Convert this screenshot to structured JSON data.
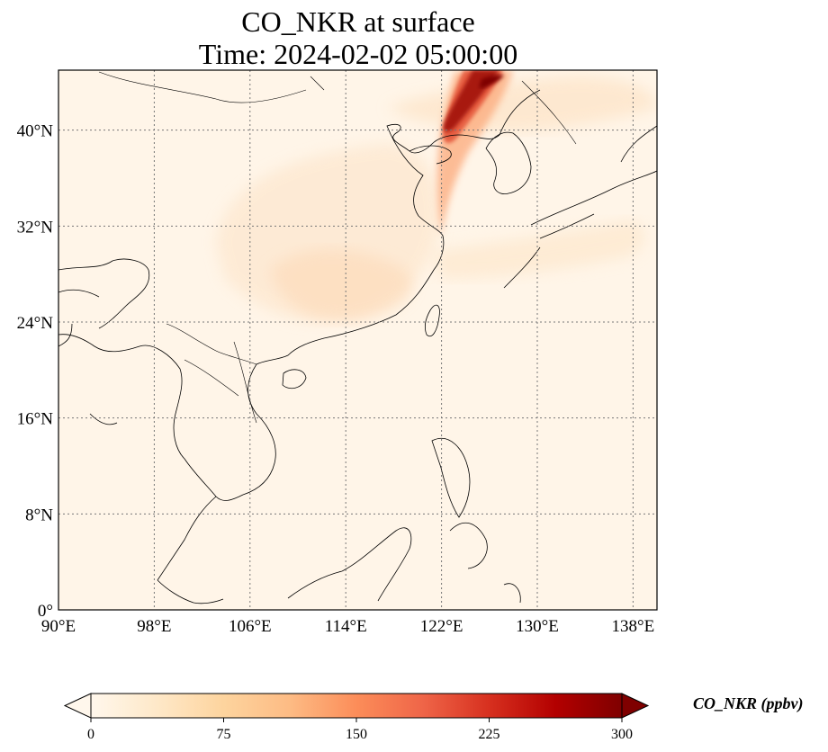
{
  "map": {
    "title": "CO_NKR at surface",
    "subtitle": "Time: 2024-02-02 05:00:00",
    "lon_range": [
      90,
      140
    ],
    "lat_range": [
      0,
      45
    ],
    "lon_ticks": [
      "90°E",
      "98°E",
      "106°E",
      "114°E",
      "122°E",
      "130°E",
      "138°E"
    ],
    "lat_ticks": [
      "0°",
      "8°N",
      "16°N",
      "24°N",
      "32°N",
      "40°N"
    ],
    "gridlines": true,
    "colormap": "OrRd",
    "colors": [
      "#fff7ec",
      "#fee8c8",
      "#fdd49e",
      "#fdbb84",
      "#fc8d59",
      "#ef6548",
      "#d7301f",
      "#b30000",
      "#7f0000"
    ]
  },
  "colorbar": {
    "label": "CO_NKR (ppbv)",
    "ticks": [
      "0",
      "75",
      "150",
      "225",
      "300"
    ],
    "min": 0,
    "max": 300,
    "extend": "both",
    "orientation": "horizontal"
  }
}
